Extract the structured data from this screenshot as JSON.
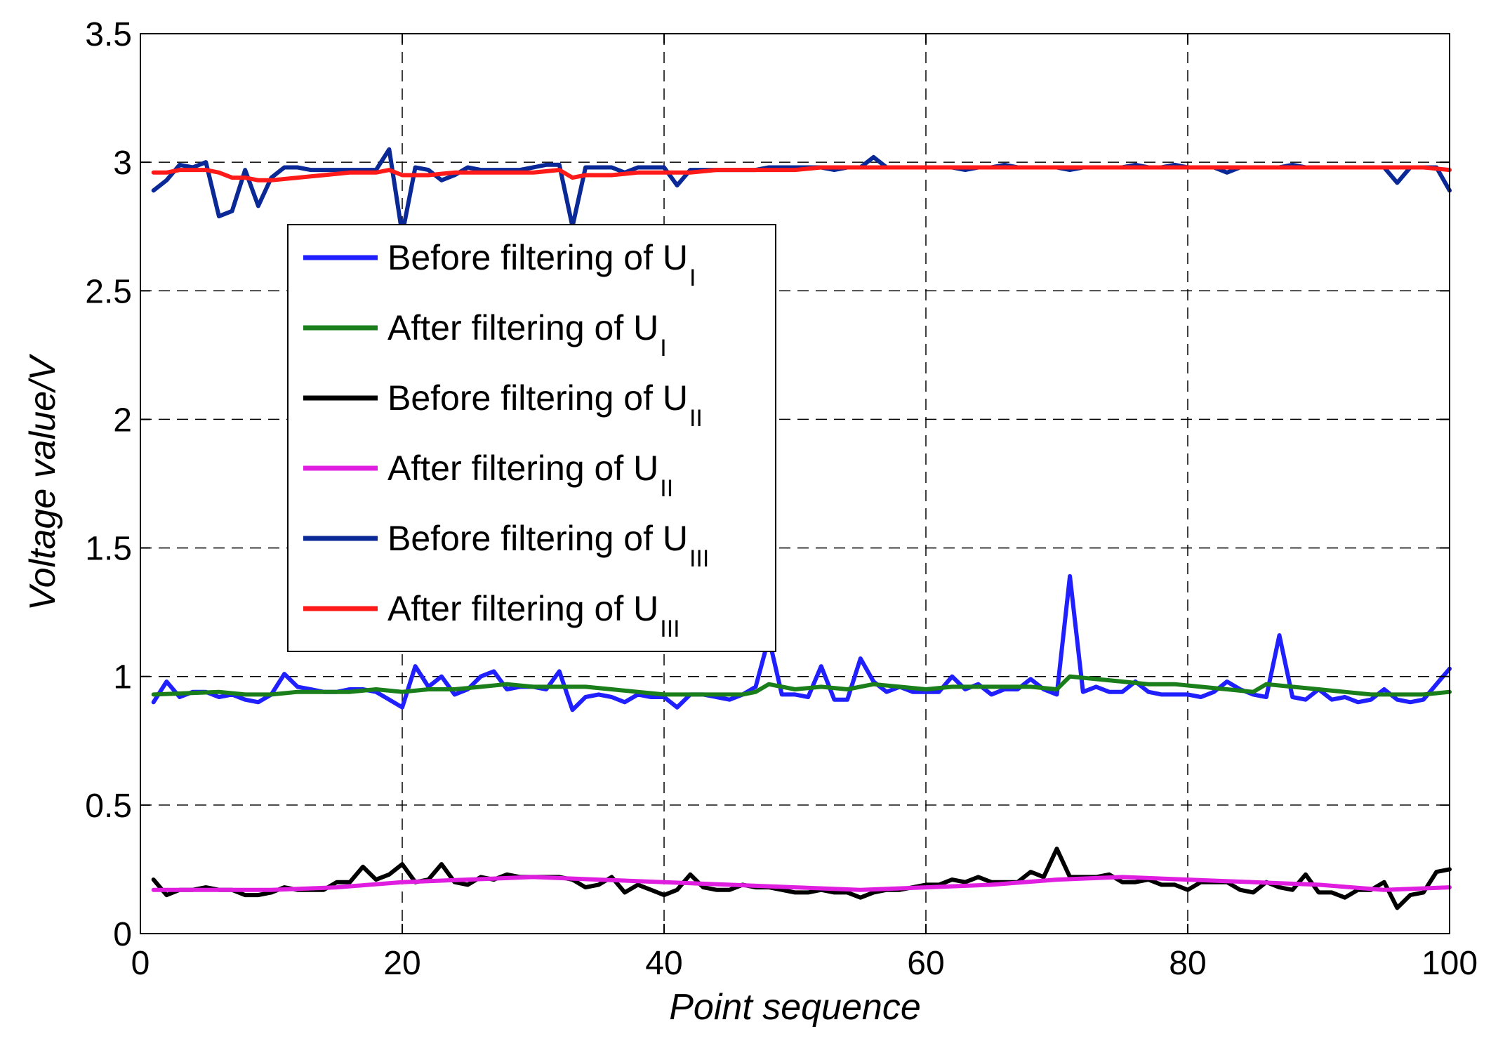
{
  "chart_data": {
    "type": "line",
    "title": "",
    "xlabel": "Point sequence",
    "ylabel": "Voltage value/V",
    "xlim": [
      0,
      100
    ],
    "ylim": [
      0,
      3.5
    ],
    "xticks": [
      0,
      20,
      40,
      60,
      80,
      100
    ],
    "xtick_labels": [
      "0",
      "20",
      "40",
      "60",
      "80",
      "100"
    ],
    "yticks": [
      0,
      0.5,
      1,
      1.5,
      2,
      2.5,
      3,
      3.5
    ],
    "ytick_labels": [
      "0",
      "0.5",
      "1",
      "1.5",
      "2",
      "2.5",
      "3",
      "3.5"
    ],
    "grid": true,
    "legend_position": "upper-left",
    "series": [
      {
        "name": "Before filtering of U",
        "legend_main": "Before filtering of U",
        "legend_sub": "I",
        "color": "#1f1fff",
        "x": [
          1,
          2,
          3,
          4,
          5,
          6,
          7,
          8,
          9,
          10,
          11,
          12,
          13,
          14,
          15,
          16,
          17,
          18,
          19,
          20,
          21,
          22,
          23,
          24,
          25,
          26,
          27,
          28,
          29,
          30,
          31,
          32,
          33,
          34,
          35,
          36,
          37,
          38,
          39,
          40,
          41,
          42,
          43,
          44,
          45,
          46,
          47,
          48,
          49,
          50,
          51,
          52,
          53,
          54,
          55,
          56,
          57,
          58,
          59,
          60,
          61,
          62,
          63,
          64,
          65,
          66,
          67,
          68,
          69,
          70,
          71,
          72,
          73,
          74,
          75,
          76,
          77,
          78,
          79,
          80,
          81,
          82,
          83,
          84,
          85,
          86,
          87,
          88,
          89,
          90,
          91,
          92,
          93,
          94,
          95,
          96,
          97,
          98,
          99,
          100
        ],
        "values": [
          0.9,
          0.98,
          0.92,
          0.94,
          0.94,
          0.92,
          0.93,
          0.91,
          0.9,
          0.93,
          1.01,
          0.96,
          0.95,
          0.94,
          0.94,
          0.95,
          0.95,
          0.94,
          0.91,
          0.88,
          1.04,
          0.96,
          1.0,
          0.93,
          0.95,
          1.0,
          1.02,
          0.95,
          0.96,
          0.96,
          0.95,
          1.02,
          0.87,
          0.92,
          0.93,
          0.92,
          0.9,
          0.93,
          0.92,
          0.92,
          0.88,
          0.93,
          0.93,
          0.92,
          0.91,
          0.93,
          0.96,
          1.15,
          0.93,
          0.93,
          0.92,
          1.04,
          0.91,
          0.91,
          1.07,
          0.98,
          0.94,
          0.96,
          0.94,
          0.94,
          0.94,
          1.0,
          0.95,
          0.97,
          0.93,
          0.95,
          0.95,
          0.99,
          0.95,
          0.93,
          1.39,
          0.94,
          0.96,
          0.94,
          0.94,
          0.98,
          0.94,
          0.93,
          0.93,
          0.93,
          0.92,
          0.94,
          0.98,
          0.95,
          0.93,
          0.92,
          1.16,
          0.92,
          0.91,
          0.95,
          0.91,
          0.92,
          0.9,
          0.91,
          0.95,
          0.91,
          0.9,
          0.91,
          0.97,
          1.03
        ]
      },
      {
        "name": "After filtering of U",
        "legend_main": "After filtering of U",
        "legend_sub": "I",
        "color": "#1a7f1a",
        "x": [
          1,
          6,
          8,
          10,
          12,
          14,
          16,
          18,
          20,
          22,
          24,
          26,
          28,
          30,
          32,
          34,
          36,
          38,
          40,
          42,
          44,
          46,
          47,
          48,
          50,
          52,
          54,
          56,
          58,
          60,
          62,
          64,
          66,
          68,
          70,
          71,
          73,
          75,
          77,
          79,
          81,
          83,
          85,
          86,
          88,
          90,
          92,
          94,
          96,
          98,
          100
        ],
        "values": [
          0.93,
          0.94,
          0.93,
          0.93,
          0.94,
          0.94,
          0.94,
          0.95,
          0.94,
          0.95,
          0.95,
          0.96,
          0.97,
          0.96,
          0.96,
          0.96,
          0.95,
          0.94,
          0.93,
          0.93,
          0.93,
          0.93,
          0.94,
          0.97,
          0.95,
          0.96,
          0.95,
          0.97,
          0.96,
          0.95,
          0.96,
          0.96,
          0.96,
          0.96,
          0.95,
          1.0,
          0.99,
          0.98,
          0.97,
          0.97,
          0.96,
          0.95,
          0.94,
          0.97,
          0.96,
          0.95,
          0.94,
          0.93,
          0.93,
          0.93,
          0.94
        ]
      },
      {
        "name": "Before filtering of U",
        "legend_main": "Before filtering of U",
        "legend_sub": "II",
        "color": "#000000",
        "x": [
          1,
          2,
          3,
          4,
          5,
          6,
          7,
          8,
          9,
          10,
          11,
          12,
          13,
          14,
          15,
          16,
          17,
          18,
          19,
          20,
          21,
          22,
          23,
          24,
          25,
          26,
          27,
          28,
          29,
          30,
          31,
          32,
          33,
          34,
          35,
          36,
          37,
          38,
          39,
          40,
          41,
          42,
          43,
          44,
          45,
          46,
          47,
          48,
          49,
          50,
          51,
          52,
          53,
          54,
          55,
          56,
          57,
          58,
          59,
          60,
          61,
          62,
          63,
          64,
          65,
          66,
          67,
          68,
          69,
          70,
          71,
          72,
          73,
          74,
          75,
          76,
          77,
          78,
          79,
          80,
          81,
          82,
          83,
          84,
          85,
          86,
          87,
          88,
          89,
          90,
          91,
          92,
          93,
          94,
          95,
          96,
          97,
          98,
          99,
          100
        ],
        "values": [
          0.21,
          0.15,
          0.17,
          0.17,
          0.18,
          0.17,
          0.17,
          0.15,
          0.15,
          0.16,
          0.18,
          0.17,
          0.17,
          0.17,
          0.2,
          0.2,
          0.26,
          0.21,
          0.23,
          0.27,
          0.2,
          0.21,
          0.27,
          0.2,
          0.19,
          0.22,
          0.21,
          0.23,
          0.22,
          0.22,
          0.22,
          0.22,
          0.21,
          0.18,
          0.19,
          0.22,
          0.16,
          0.19,
          0.17,
          0.15,
          0.17,
          0.23,
          0.18,
          0.17,
          0.17,
          0.19,
          0.18,
          0.18,
          0.17,
          0.16,
          0.16,
          0.17,
          0.16,
          0.16,
          0.14,
          0.16,
          0.17,
          0.17,
          0.18,
          0.19,
          0.19,
          0.21,
          0.2,
          0.22,
          0.2,
          0.2,
          0.2,
          0.24,
          0.22,
          0.33,
          0.22,
          0.22,
          0.22,
          0.23,
          0.2,
          0.2,
          0.21,
          0.19,
          0.19,
          0.17,
          0.2,
          0.2,
          0.2,
          0.17,
          0.16,
          0.2,
          0.18,
          0.17,
          0.23,
          0.16,
          0.16,
          0.14,
          0.17,
          0.17,
          0.2,
          0.1,
          0.15,
          0.16,
          0.24,
          0.25
        ]
      },
      {
        "name": "After filtering of U",
        "legend_main": "After filtering of U",
        "legend_sub": "II",
        "color": "#e01ee0",
        "x": [
          1,
          5,
          10,
          15,
          20,
          25,
          30,
          35,
          40,
          45,
          50,
          55,
          60,
          65,
          70,
          75,
          80,
          85,
          90,
          95,
          100
        ],
        "values": [
          0.17,
          0.17,
          0.17,
          0.18,
          0.2,
          0.21,
          0.22,
          0.21,
          0.2,
          0.19,
          0.18,
          0.17,
          0.18,
          0.19,
          0.21,
          0.22,
          0.21,
          0.2,
          0.19,
          0.17,
          0.18
        ]
      },
      {
        "name": "Before filtering of U",
        "legend_main": "Before filtering of U",
        "legend_sub": "III",
        "color": "#0a2896",
        "x": [
          1,
          2,
          3,
          4,
          5,
          6,
          7,
          8,
          9,
          10,
          11,
          12,
          13,
          14,
          15,
          16,
          17,
          18,
          19,
          20,
          21,
          22,
          23,
          24,
          25,
          26,
          27,
          28,
          29,
          30,
          31,
          32,
          33,
          34,
          35,
          36,
          37,
          38,
          39,
          40,
          41,
          42,
          43,
          44,
          45,
          46,
          47,
          48,
          49,
          50,
          51,
          52,
          53,
          54,
          55,
          56,
          57,
          58,
          59,
          60,
          61,
          62,
          63,
          64,
          65,
          66,
          67,
          68,
          69,
          70,
          71,
          72,
          73,
          74,
          75,
          76,
          77,
          78,
          79,
          80,
          81,
          82,
          83,
          84,
          85,
          86,
          87,
          88,
          89,
          90,
          91,
          92,
          93,
          94,
          95,
          96,
          97,
          98,
          99,
          100
        ],
        "values": [
          2.89,
          2.93,
          2.99,
          2.98,
          3.0,
          2.79,
          2.81,
          2.97,
          2.83,
          2.94,
          2.98,
          2.98,
          2.97,
          2.97,
          2.97,
          2.97,
          2.97,
          2.97,
          3.05,
          2.72,
          2.98,
          2.97,
          2.93,
          2.95,
          2.98,
          2.97,
          2.97,
          2.97,
          2.97,
          2.98,
          2.99,
          2.99,
          2.75,
          2.98,
          2.98,
          2.98,
          2.96,
          2.98,
          2.98,
          2.98,
          2.91,
          2.97,
          2.97,
          2.97,
          2.97,
          2.97,
          2.97,
          2.98,
          2.98,
          2.98,
          2.98,
          2.98,
          2.97,
          2.98,
          2.98,
          3.02,
          2.98,
          2.98,
          2.98,
          2.98,
          2.98,
          2.98,
          2.97,
          2.98,
          2.98,
          2.99,
          2.98,
          2.98,
          2.98,
          2.98,
          2.97,
          2.98,
          2.98,
          2.98,
          2.98,
          2.99,
          2.98,
          2.98,
          2.99,
          2.98,
          2.98,
          2.98,
          2.96,
          2.98,
          2.98,
          2.98,
          2.98,
          2.99,
          2.98,
          2.98,
          2.98,
          2.98,
          2.98,
          2.98,
          2.98,
          2.92,
          2.98,
          2.98,
          2.98,
          2.89
        ]
      },
      {
        "name": "After filtering of U",
        "legend_main": "After filtering of U",
        "legend_sub": "III",
        "color": "#ff1a1a",
        "x": [
          1,
          2,
          3,
          4,
          5,
          6,
          7,
          8,
          9,
          10,
          12,
          14,
          16,
          18,
          19,
          20,
          22,
          24,
          26,
          28,
          30,
          32,
          33,
          34,
          36,
          38,
          40,
          42,
          44,
          46,
          48,
          50,
          52,
          54,
          56,
          58,
          60,
          65,
          70,
          75,
          80,
          85,
          90,
          95,
          98,
          100
        ],
        "values": [
          2.96,
          2.96,
          2.97,
          2.97,
          2.97,
          2.96,
          2.94,
          2.94,
          2.93,
          2.93,
          2.94,
          2.95,
          2.96,
          2.96,
          2.97,
          2.95,
          2.95,
          2.96,
          2.96,
          2.96,
          2.96,
          2.97,
          2.94,
          2.95,
          2.95,
          2.96,
          2.96,
          2.96,
          2.97,
          2.97,
          2.97,
          2.97,
          2.98,
          2.98,
          2.98,
          2.98,
          2.98,
          2.98,
          2.98,
          2.98,
          2.98,
          2.98,
          2.98,
          2.98,
          2.98,
          2.97
        ]
      }
    ]
  }
}
